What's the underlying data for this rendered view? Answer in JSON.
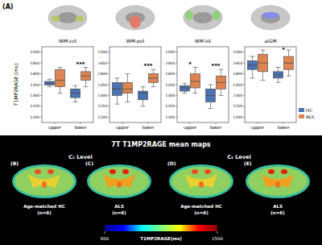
{
  "panel_label": "(A)",
  "chart_data": [
    {
      "type": "box",
      "title": "WM-cst",
      "y_label": "T1MP2RAGE [ms]",
      "categories": [
        "upper",
        "lower"
      ],
      "ylim": [
        1175,
        1525
      ],
      "yticks": [
        1200,
        1250,
        1300,
        1350,
        1400,
        1450,
        1500
      ],
      "series": [
        {
          "name": "HC",
          "color": "#4c72b0",
          "whislo": [
            1340,
            1270
          ],
          "q1": [
            1348,
            1290
          ],
          "median": [
            1355,
            1310
          ],
          "q3": [
            1365,
            1330
          ],
          "whishi": [
            1375,
            1345
          ]
        },
        {
          "name": "ALS",
          "color": "#dd8452",
          "whislo": [
            1310,
            1340
          ],
          "q1": [
            1340,
            1370
          ],
          "median": [
            1370,
            1390
          ],
          "q3": [
            1420,
            1410
          ],
          "whishi": [
            1430,
            1430
          ]
        }
      ],
      "annotations": [
        {
          "x": "lower",
          "text": "***"
        }
      ]
    },
    {
      "type": "box",
      "title": "WM-pst",
      "categories": [
        "upper",
        "lower"
      ],
      "ylim": [
        1175,
        1525
      ],
      "yticks": [
        1200,
        1250,
        1300,
        1350,
        1400,
        1450,
        1500
      ],
      "series": [
        {
          "name": "HC",
          "color": "#4c72b0",
          "whislo": [
            1260,
            1250
          ],
          "q1": [
            1300,
            1280
          ],
          "median": [
            1330,
            1310
          ],
          "q3": [
            1360,
            1320
          ],
          "whishi": [
            1380,
            1340
          ]
        },
        {
          "name": "ALS",
          "color": "#dd8452",
          "whislo": [
            1270,
            1340
          ],
          "q1": [
            1310,
            1360
          ],
          "median": [
            1330,
            1380
          ],
          "q3": [
            1360,
            1400
          ],
          "whishi": [
            1400,
            1420
          ]
        }
      ],
      "annotations": [
        {
          "x": "lower",
          "text": "***"
        }
      ]
    },
    {
      "type": "box",
      "title": "WM-lst",
      "categories": [
        "upper",
        "lower"
      ],
      "ylim": [
        1175,
        1525
      ],
      "yticks": [
        1200,
        1250,
        1300,
        1350,
        1400,
        1450,
        1500
      ],
      "series": [
        {
          "name": "HC",
          "color": "#4c72b0",
          "whislo": [
            1310,
            1240
          ],
          "q1": [
            1320,
            1270
          ],
          "median": [
            1335,
            1300
          ],
          "q3": [
            1345,
            1330
          ],
          "whishi": [
            1355,
            1350
          ]
        },
        {
          "name": "ALS",
          "color": "#dd8452",
          "whislo": [
            1310,
            1300
          ],
          "q1": [
            1335,
            1330
          ],
          "median": [
            1365,
            1360
          ],
          "q3": [
            1400,
            1390
          ],
          "whishi": [
            1430,
            1420
          ]
        }
      ],
      "annotations": [
        {
          "x": "upper",
          "text": "*"
        },
        {
          "x": "lower",
          "text": "***"
        }
      ]
    },
    {
      "type": "box",
      "title": "aiGM",
      "categories": [
        "upper",
        "lower"
      ],
      "legend": "lower right",
      "ylim": [
        1175,
        1525
      ],
      "yticks": [
        1200,
        1250,
        1300,
        1350,
        1400,
        1450,
        1500
      ],
      "series": [
        {
          "name": "HC",
          "color": "#4c72b0",
          "whislo": [
            1380,
            1360
          ],
          "q1": [
            1420,
            1380
          ],
          "median": [
            1440,
            1395
          ],
          "q3": [
            1460,
            1410
          ],
          "whishi": [
            1480,
            1430
          ]
        },
        {
          "name": "ALS",
          "color": "#dd8452",
          "whislo": [
            1370,
            1390
          ],
          "q1": [
            1410,
            1420
          ],
          "median": [
            1450,
            1450
          ],
          "q3": [
            1490,
            1480
          ],
          "whishi": [
            1510,
            1510
          ]
        }
      ],
      "annotations": [
        {
          "x": "lower",
          "text": "*"
        }
      ]
    }
  ],
  "maps": {
    "title": "7T T1MP2RAGE mean maps",
    "levels": [
      "C₂ Level",
      "C₅ Level"
    ],
    "panels": [
      {
        "label": "(B)",
        "group": "Age-matched HC",
        "n": "(n=8)"
      },
      {
        "label": "(C)",
        "group": "ALS",
        "n": "(n=8)"
      },
      {
        "label": "(D)",
        "group": "Age-matched HC",
        "n": "(n=8)"
      },
      {
        "label": "(E)",
        "group": "ALS",
        "n": "(n=8)"
      }
    ],
    "colorbar": {
      "label": "T1MP2RAGE(ms)",
      "range": [
        800,
        1500
      ],
      "ticks": [
        800,
        1500
      ]
    }
  }
}
